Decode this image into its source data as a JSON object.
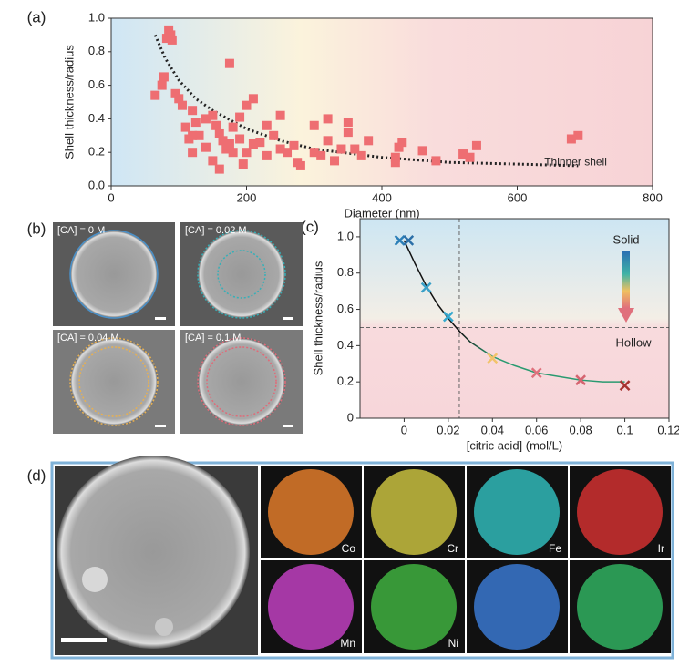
{
  "chart_data": [
    {
      "type": "scatter",
      "label": "(a)",
      "xlabel": "Diameter (nm)",
      "ylabel": "Shell thickness/radius",
      "marker": "square",
      "color": "#ee6e72",
      "x": [
        85,
        88,
        82,
        90,
        78,
        95,
        65,
        100,
        75,
        105,
        120,
        110,
        125,
        130,
        115,
        120,
        140,
        150,
        155,
        160,
        170,
        165,
        175,
        180,
        180,
        150,
        160,
        190,
        200,
        210,
        220,
        230,
        240,
        250,
        260,
        270,
        275,
        280,
        300,
        310,
        320,
        330,
        340,
        350,
        360,
        370,
        380,
        175,
        200,
        210,
        230,
        250,
        300,
        320,
        350,
        420,
        420,
        430,
        425,
        460,
        480,
        520,
        530,
        540,
        680,
        690,
        120,
        190,
        140,
        195
      ],
      "values": [
        0.93,
        0.9,
        0.88,
        0.87,
        0.65,
        0.55,
        0.54,
        0.52,
        0.6,
        0.48,
        0.45,
        0.35,
        0.38,
        0.3,
        0.28,
        0.2,
        0.4,
        0.42,
        0.36,
        0.31,
        0.22,
        0.27,
        0.25,
        0.35,
        0.2,
        0.15,
        0.1,
        0.28,
        0.2,
        0.25,
        0.26,
        0.18,
        0.3,
        0.22,
        0.2,
        0.24,
        0.14,
        0.12,
        0.2,
        0.18,
        0.27,
        0.15,
        0.22,
        0.32,
        0.22,
        0.18,
        0.27,
        0.73,
        0.48,
        0.52,
        0.36,
        0.42,
        0.36,
        0.4,
        0.38,
        0.17,
        0.14,
        0.26,
        0.23,
        0.21,
        0.15,
        0.19,
        0.17,
        0.24,
        0.28,
        0.3,
        0.3,
        0.41,
        0.23,
        0.13
      ],
      "fit": {
        "x": [
          65,
          80,
          100,
          125,
          150,
          200,
          250,
          300,
          400,
          500,
          600,
          690
        ],
        "values": [
          0.9,
          0.76,
          0.63,
          0.52,
          0.45,
          0.34,
          0.27,
          0.22,
          0.17,
          0.14,
          0.13,
          0.12
        ]
      },
      "annotation": "Thinner shell",
      "xlim": [
        0,
        800
      ],
      "ylim": [
        0,
        1.0
      ],
      "xticks": [
        0,
        200,
        400,
        600,
        800
      ],
      "yticks": [
        {
          "value": 0,
          "label": "0.0"
        },
        0.2,
        0.4,
        0.6,
        0.8,
        {
          "value": 1.0,
          "label": "1.0"
        }
      ]
    },
    {
      "type": "scatter",
      "label": "(c)",
      "xlabel": "[citric acid] (mol/L)",
      "ylabel": "Shell thickness/radius",
      "marker": "cross",
      "x": [
        -0.002,
        0.002,
        0.01,
        0.02,
        0.04,
        0.06,
        0.08,
        0.1
      ],
      "values": [
        0.98,
        0.98,
        0.72,
        0.56,
        0.33,
        0.25,
        0.21,
        0.18
      ],
      "colors": [
        "#2c7fb8",
        "#2c6fa8",
        "#3aa0c8",
        "#35a9cf",
        "#f2c36b",
        "#e0707c",
        "#d66470",
        "#a8332f"
      ],
      "fit": {
        "x": [
          0,
          0.005,
          0.01,
          0.015,
          0.02,
          0.025,
          0.03,
          0.04,
          0.05,
          0.06,
          0.07,
          0.08,
          0.09,
          0.1
        ],
        "values": [
          0.98,
          0.85,
          0.73,
          0.63,
          0.55,
          0.48,
          0.42,
          0.34,
          0.29,
          0.25,
          0.23,
          0.21,
          0.2,
          0.2
        ]
      },
      "vline": 0.025,
      "hline": 0.5,
      "annotations": [
        "Solid",
        "Hollow"
      ],
      "xlim": [
        -0.02,
        0.12
      ],
      "ylim": [
        0,
        1.1
      ],
      "xticks": [
        0,
        0.02,
        0.04,
        0.06,
        0.08,
        0.1,
        0.12
      ],
      "yticks": [
        0,
        0.2,
        0.4,
        0.6,
        0.8,
        {
          "value": 1.0,
          "label": "1.0"
        }
      ]
    }
  ],
  "images": {
    "b": {
      "label": "(b)",
      "captions": [
        "[CA] = 0 M",
        "[CA] = 0.02 M",
        "[CA] = 0.04 M",
        "[CA] = 0.1 M"
      ]
    },
    "d": {
      "label": "(d)",
      "maps": [
        "Co",
        "Cr",
        "Fe",
        "Ir",
        "Mn",
        "Ni"
      ]
    }
  }
}
